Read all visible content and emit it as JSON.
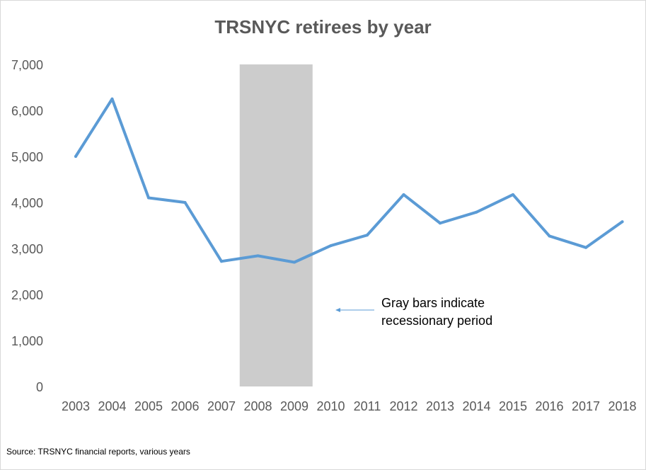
{
  "chart_data": {
    "type": "line",
    "title": "TRSNYC retirees by year",
    "xlabel": "",
    "ylabel": "",
    "categories": [
      "2003",
      "2004",
      "2005",
      "2006",
      "2007",
      "2008",
      "2009",
      "2010",
      "2011",
      "2012",
      "2013",
      "2014",
      "2015",
      "2016",
      "2017",
      "2018"
    ],
    "series": [
      {
        "values": [
          5000,
          6250,
          4100,
          4000,
          2720,
          2840,
          2700,
          3060,
          3290,
          4170,
          3550,
          3790,
          4170,
          3270,
          3020,
          3580
        ]
      }
    ],
    "ylim": [
      0,
      7000
    ],
    "yticks": [
      0,
      1000,
      2000,
      3000,
      4000,
      5000,
      6000,
      7000
    ],
    "ytick_labels": [
      "0",
      "1,000",
      "2,000",
      "3,000",
      "4,000",
      "5,000",
      "6,000",
      "7,000"
    ],
    "grid": false,
    "legend": "none",
    "recession_band": {
      "from": "2008",
      "to": "2009",
      "color": "#cccccc"
    },
    "line_color": "#5b9bd5",
    "annotation": {
      "line1": "Gray bars indicate",
      "line2": "recessionary period"
    },
    "source": "Source: TRSNYC financial reports, various years"
  }
}
